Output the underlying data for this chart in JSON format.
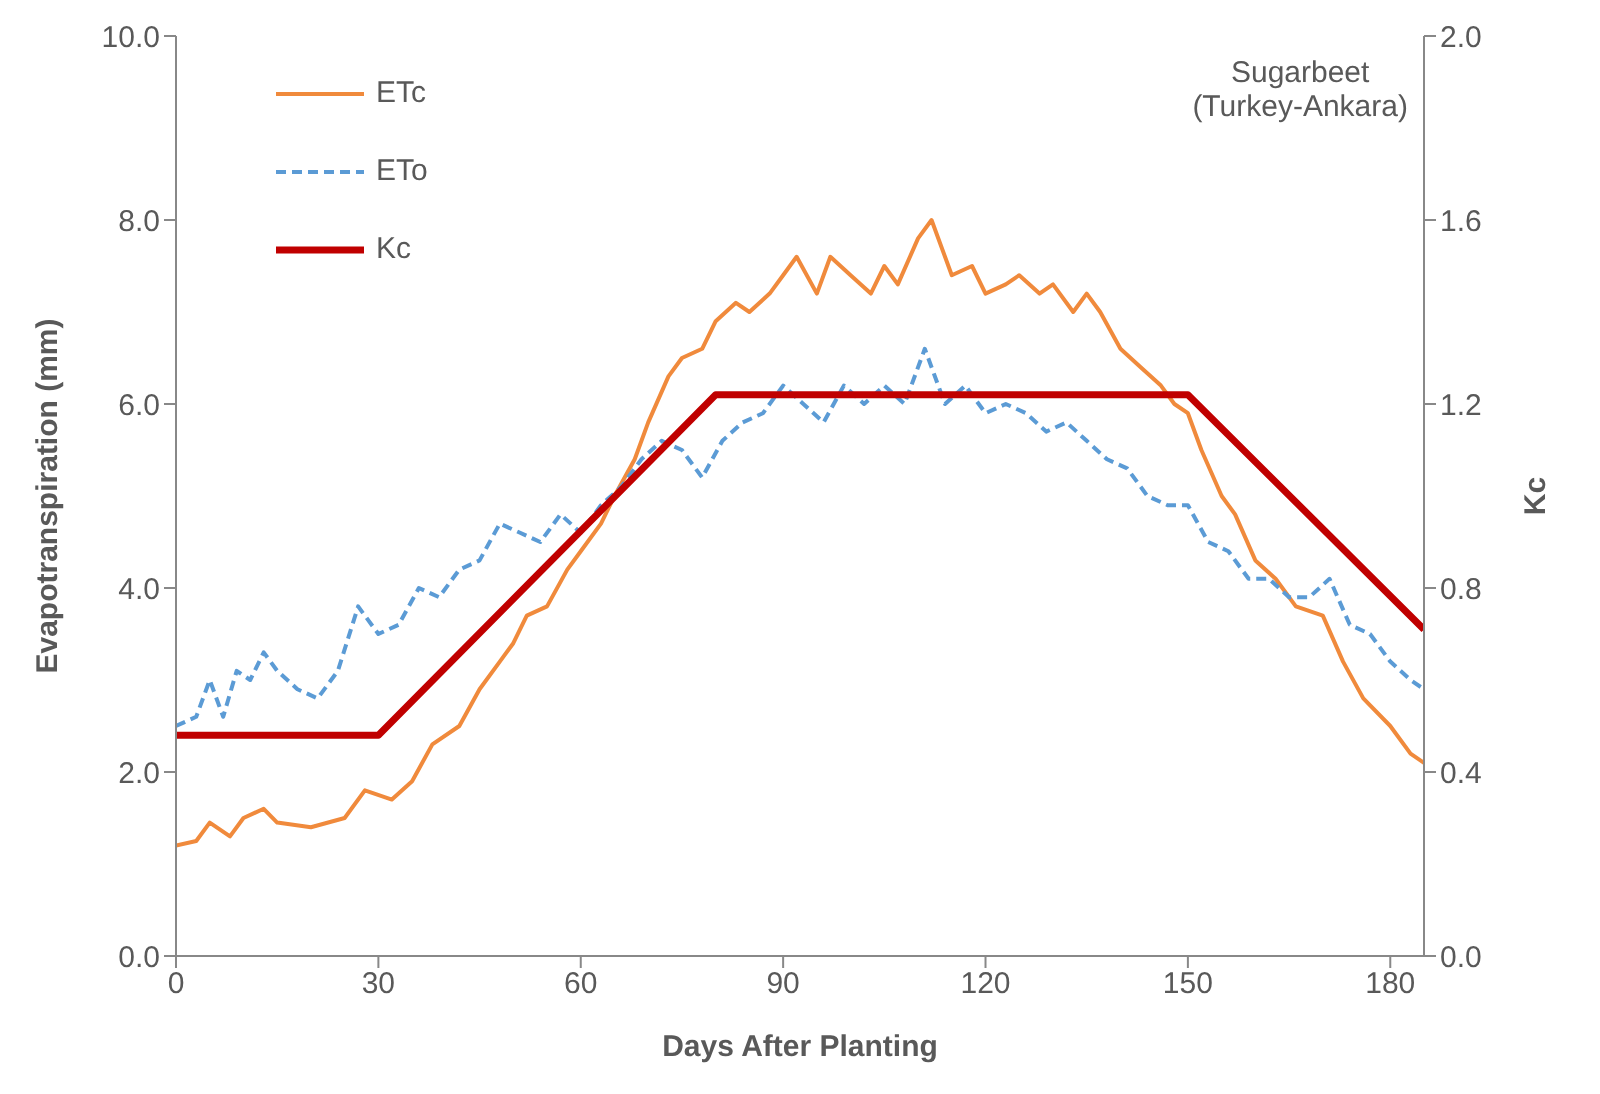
{
  "chart_data": {
    "type": "line",
    "xlabel": "Days After Planting",
    "ylabel": "Evapotranspiration (mm)",
    "y2label": "Kc",
    "annotations": [
      "Sugarbeet\n(Turkey-Ankara)"
    ],
    "xlim": [
      0,
      185
    ],
    "xticks": [
      0,
      30,
      60,
      90,
      120,
      150,
      180
    ],
    "ylim": [
      0,
      10
    ],
    "yticks": [
      {
        "value": 0,
        "label": "0.0"
      },
      {
        "value": 2,
        "label": "2.0"
      },
      {
        "value": 4,
        "label": "4.0"
      },
      {
        "value": 6,
        "label": "6.0"
      },
      {
        "value": 8,
        "label": "8.0"
      },
      {
        "value": 10,
        "label": "10.0"
      }
    ],
    "y2lim": [
      0,
      2
    ],
    "y2ticks": [
      {
        "value": 0,
        "label": "0.0"
      },
      {
        "value": 0.4,
        "label": "0.4"
      },
      {
        "value": 0.8,
        "label": "0.8"
      },
      {
        "value": 1.2,
        "label": "1.2"
      },
      {
        "value": 1.6,
        "label": "1.6"
      },
      {
        "value": 2,
        "label": "2.0"
      }
    ],
    "grid": false,
    "legend": "top left",
    "marker": "none",
    "series": [
      {
        "name": "ETc",
        "color": "#f08a3c",
        "line_style": "solid",
        "x": [
          0,
          3,
          5,
          8,
          10,
          13,
          15,
          20,
          25,
          28,
          32,
          35,
          38,
          42,
          45,
          48,
          50,
          52,
          55,
          58,
          60,
          63,
          65,
          68,
          70,
          73,
          75,
          78,
          80,
          83,
          85,
          88,
          90,
          92,
          95,
          97,
          100,
          103,
          105,
          107,
          110,
          112,
          115,
          118,
          120,
          123,
          125,
          128,
          130,
          133,
          135,
          137,
          140,
          143,
          146,
          148,
          150,
          152,
          155,
          157,
          160,
          163,
          166,
          170,
          173,
          176,
          180,
          183,
          185
        ],
        "values": [
          1.2,
          1.25,
          1.45,
          1.3,
          1.5,
          1.6,
          1.45,
          1.4,
          1.5,
          1.8,
          1.7,
          1.9,
          2.3,
          2.5,
          2.9,
          3.2,
          3.4,
          3.7,
          3.8,
          4.2,
          4.4,
          4.7,
          5.0,
          5.4,
          5.8,
          6.3,
          6.5,
          6.6,
          6.9,
          7.1,
          7.0,
          7.2,
          7.4,
          7.6,
          7.2,
          7.6,
          7.4,
          7.2,
          7.5,
          7.3,
          7.8,
          8.0,
          7.4,
          7.5,
          7.2,
          7.3,
          7.4,
          7.2,
          7.3,
          7.0,
          7.2,
          7.0,
          6.6,
          6.4,
          6.2,
          6.0,
          5.9,
          5.5,
          5.0,
          4.8,
          4.3,
          4.1,
          3.8,
          3.7,
          3.2,
          2.8,
          2.5,
          2.2,
          2.1
        ]
      },
      {
        "name": "ETo",
        "color": "#5b9bd5",
        "line_style": "dashed",
        "x": [
          0,
          3,
          5,
          7,
          9,
          11,
          13,
          15,
          18,
          21,
          24,
          27,
          30,
          33,
          36,
          39,
          42,
          45,
          48,
          51,
          54,
          57,
          60,
          63,
          66,
          69,
          72,
          75,
          78,
          81,
          84,
          87,
          90,
          93,
          96,
          99,
          102,
          105,
          108,
          111,
          114,
          117,
          120,
          123,
          126,
          129,
          132,
          135,
          138,
          141,
          144,
          147,
          150,
          153,
          156,
          159,
          162,
          165,
          168,
          171,
          174,
          177,
          180,
          183,
          185
        ],
        "values": [
          2.5,
          2.6,
          3.0,
          2.6,
          3.1,
          3.0,
          3.3,
          3.1,
          2.9,
          2.8,
          3.1,
          3.8,
          3.5,
          3.6,
          4.0,
          3.9,
          4.2,
          4.3,
          4.7,
          4.6,
          4.5,
          4.8,
          4.6,
          4.9,
          5.1,
          5.4,
          5.6,
          5.5,
          5.2,
          5.6,
          5.8,
          5.9,
          6.2,
          6.0,
          5.8,
          6.2,
          6.0,
          6.2,
          6.0,
          6.6,
          6.0,
          6.2,
          5.9,
          6.0,
          5.9,
          5.7,
          5.8,
          5.6,
          5.4,
          5.3,
          5.0,
          4.9,
          4.9,
          4.5,
          4.4,
          4.1,
          4.1,
          3.9,
          3.9,
          4.1,
          3.6,
          3.5,
          3.2,
          3.0,
          2.9
        ]
      },
      {
        "name": "Kc",
        "color": "#c00000",
        "line_style": "solid",
        "axis": "y2",
        "x": [
          0,
          30,
          80,
          150,
          185
        ],
        "values": [
          0.48,
          0.48,
          1.22,
          1.22,
          0.71
        ]
      }
    ]
  }
}
